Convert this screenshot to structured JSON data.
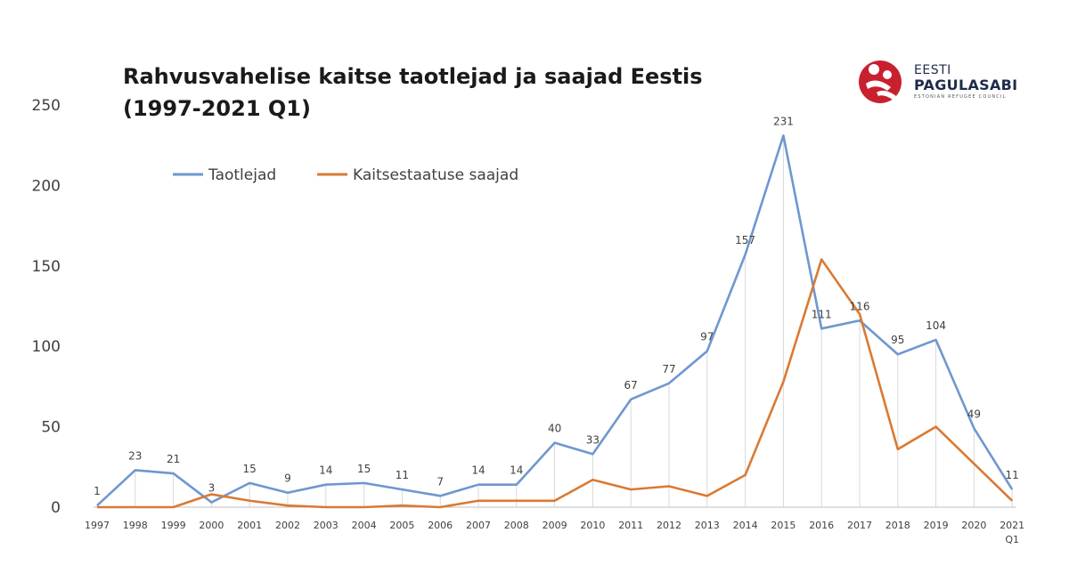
{
  "title_line1": "Rahvusvahelise kaitse taotlejad ja saajad Eestis",
  "title_line2": "(1997-2021 Q1)",
  "logo": {
    "line1": "EESTI",
    "line2": "PAGULASABI",
    "line3": "ESTONIAN REFUGEE COUNCIL",
    "mark_color": "#c8202f"
  },
  "chart_data": {
    "type": "line",
    "categories": [
      "1997",
      "1998",
      "1999",
      "2000",
      "2001",
      "2002",
      "2003",
      "2004",
      "2005",
      "2006",
      "2007",
      "2008",
      "2009",
      "2010",
      "2011",
      "2012",
      "2013",
      "2014",
      "2015",
      "2016",
      "2017",
      "2018",
      "2019",
      "2020",
      "2021 Q1"
    ],
    "ylim": [
      0,
      250
    ],
    "yticks": [
      0,
      50,
      100,
      150,
      200,
      250
    ],
    "grid": "vertical drop lines from applicant points",
    "legend_placement": "top-left",
    "series": [
      {
        "name": "Taotlejad",
        "color": "#6f97cf",
        "values": [
          1,
          23,
          21,
          3,
          15,
          9,
          14,
          15,
          11,
          7,
          14,
          14,
          40,
          33,
          67,
          77,
          97,
          157,
          231,
          111,
          116,
          95,
          104,
          49,
          11
        ],
        "data_labels": [
          "1",
          "23",
          "21",
          "3",
          "15",
          "9",
          "14",
          "15",
          "11",
          "7",
          "14",
          "14",
          "40",
          "33",
          "67",
          "77",
          "97",
          "157",
          "231",
          "111",
          "116",
          "95",
          "104",
          "49",
          "11"
        ]
      },
      {
        "name": "Kaitsestaatuse saajad",
        "color": "#d97a34",
        "values": [
          0,
          0,
          0,
          8,
          4,
          1,
          0,
          0,
          1,
          0,
          4,
          4,
          4,
          17,
          11,
          13,
          7,
          20,
          78,
          154,
          120,
          36,
          50,
          27,
          4
        ]
      }
    ]
  }
}
